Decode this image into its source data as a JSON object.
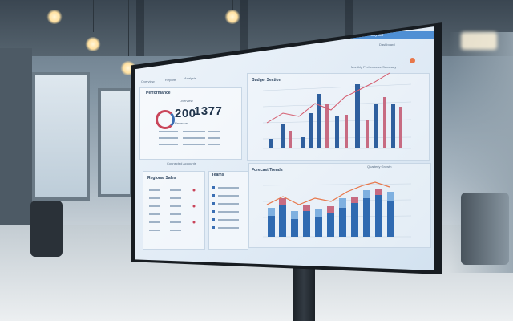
{
  "background": {
    "wall_color": "#8193a1",
    "floor_color": "#d4dbe0"
  },
  "monitor": {
    "bezel_color": "#171c21",
    "screen_color": "#e4edf6"
  },
  "dashboard": {
    "topbar_labels": [
      "Economics",
      "Dashboard"
    ],
    "brand_text": "Analytics",
    "subtitle": "Dashboard",
    "tabs": [
      "Overview",
      "Reports",
      "Analysis"
    ],
    "left_panel_title": "Performance",
    "left_panel_subtitle": "Overview",
    "kpi_primary": "200",
    "kpi_secondary": "1377",
    "kpi_caption": "Revenue",
    "bar_chart_title": "Budget Section",
    "bar_chart_legend": "Monthly Performance Summary",
    "lower_chart_title": "Forecast Trends",
    "lower_chart_legend": "Quarterly Growth",
    "list_panel_title": "Regional Sales",
    "list_panel_2_title": "Teams",
    "status_text": "Connected Accounts",
    "accent_red": "#c9455a",
    "accent_blue": "#3b6fb4",
    "accent_orange": "#e8774a"
  }
}
